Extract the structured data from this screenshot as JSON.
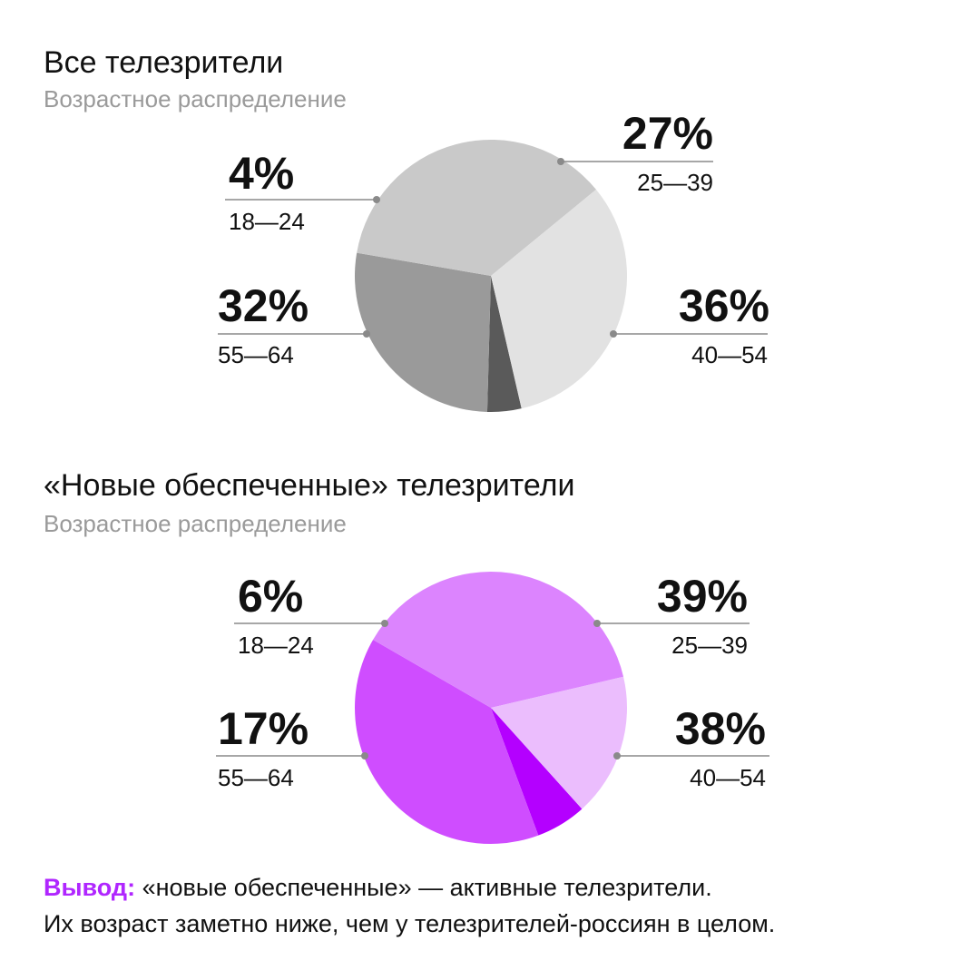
{
  "chart_data": [
    {
      "type": "pie",
      "title": "Все телезрители",
      "subtitle": "Возрастное распределение",
      "slices": [
        {
          "label": "18—24",
          "value": 4,
          "display": "4%",
          "color": "#5a5a5a"
        },
        {
          "label": "25—39",
          "value": 27,
          "display": "27%",
          "color": "#9a9a9a"
        },
        {
          "label": "40—54",
          "value": 36,
          "display": "36%",
          "color": "#c9c9c9"
        },
        {
          "label": "55—64",
          "value": 32,
          "display": "32%",
          "color": "#e2e2e2"
        }
      ]
    },
    {
      "type": "pie",
      "title": "«Новые обеспеченные» телезрители",
      "subtitle": "Возрастное распределение",
      "slices": [
        {
          "label": "18—24",
          "value": 6,
          "display": "6%",
          "color": "#b400ff"
        },
        {
          "label": "25—39",
          "value": 39,
          "display": "39%",
          "color": "#cf4dff"
        },
        {
          "label": "40—54",
          "value": 38,
          "display": "38%",
          "color": "#dc84fe"
        },
        {
          "label": "55—64",
          "value": 17,
          "display": "17%",
          "color": "#ebbdfd"
        }
      ]
    }
  ],
  "conclusion": {
    "label": "Вывод:",
    "line1": "«новые обеспеченные» — активные телезрители.",
    "line2": "Их возраст заметно ниже, чем у телезрителей-россиян в целом."
  },
  "colors": {
    "accent": "#b026ff",
    "leader_line": "#8a8a8a",
    "subtitle": "#9a9a9a"
  }
}
